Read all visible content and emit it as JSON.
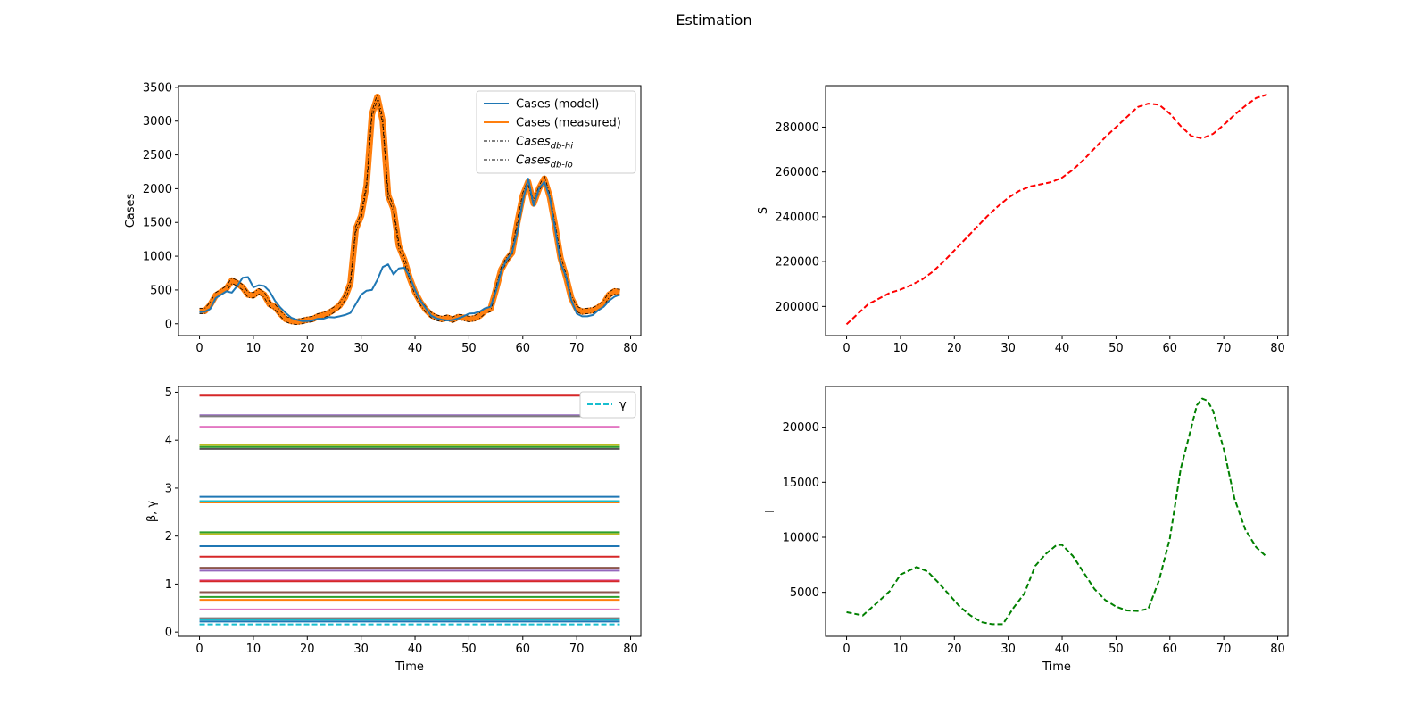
{
  "figure": {
    "title": "Estimation"
  },
  "chart_data": [
    {
      "type": "line",
      "title": "",
      "xlabel": "",
      "ylabel": "Cases",
      "xlim": [
        -3.9,
        81.9
      ],
      "ylim": [
        -175,
        3525
      ],
      "xticks": [
        0,
        10,
        20,
        30,
        40,
        50,
        60,
        70,
        80
      ],
      "yticks": [
        0,
        500,
        1000,
        1500,
        2000,
        2500,
        3000,
        3500
      ],
      "grid": false,
      "legend_position": "top-right",
      "x": [
        0,
        1,
        2,
        3,
        4,
        5,
        6,
        7,
        8,
        9,
        10,
        11,
        12,
        13,
        14,
        15,
        16,
        17,
        18,
        19,
        20,
        21,
        22,
        23,
        24,
        25,
        26,
        27,
        28,
        29,
        30,
        31,
        32,
        33,
        34,
        35,
        36,
        37,
        38,
        39,
        40,
        41,
        42,
        43,
        44,
        45,
        46,
        47,
        48,
        49,
        50,
        51,
        52,
        53,
        54,
        55,
        56,
        57,
        58,
        59,
        60,
        61,
        62,
        63,
        64,
        65,
        66,
        67,
        68,
        69,
        70,
        71,
        72,
        73,
        74,
        75,
        76,
        77,
        78
      ],
      "series": [
        {
          "name": "Cases (model)",
          "color": "#1f77b4",
          "style": "solid",
          "values": [
            170,
            180,
            220,
            380,
            430,
            480,
            460,
            560,
            680,
            690,
            540,
            570,
            560,
            480,
            340,
            240,
            160,
            90,
            60,
            40,
            40,
            50,
            75,
            75,
            100,
            95,
            110,
            130,
            160,
            290,
            430,
            490,
            500,
            650,
            840,
            880,
            730,
            820,
            830,
            700,
            500,
            340,
            230,
            120,
            80,
            60,
            50,
            55,
            80,
            110,
            150,
            155,
            180,
            230,
            250,
            480,
            780,
            950,
            1050,
            1370,
            1820,
            2150,
            1750,
            2000,
            2100,
            1870,
            1400,
            900,
            700,
            350,
            150,
            110,
            110,
            130,
            200,
            250,
            340,
            400,
            430
          ]
        },
        {
          "name": "Cases (measured)",
          "color": "#ff7f0e",
          "style": "solid",
          "values": [
            190,
            190,
            280,
            420,
            470,
            520,
            640,
            600,
            540,
            430,
            420,
            480,
            430,
            290,
            250,
            150,
            70,
            40,
            30,
            40,
            60,
            70,
            110,
            130,
            160,
            210,
            270,
            390,
            600,
            1400,
            1600,
            2050,
            3100,
            3360,
            3000,
            1900,
            1700,
            1150,
            950,
            680,
            470,
            320,
            210,
            130,
            90,
            70,
            90,
            60,
            100,
            90,
            70,
            80,
            120,
            190,
            220,
            500,
            800,
            950,
            1050,
            1500,
            1900,
            2100,
            1780,
            2000,
            2150,
            1880,
            1450,
            980,
            700,
            380,
            220,
            180,
            190,
            200,
            240,
            300,
            430,
            480,
            470
          ]
        },
        {
          "name": "Cases_{db-hi}",
          "color": "#000000",
          "style": "dashdot",
          "offset": 40
        },
        {
          "name": "Cases_{db-lo}",
          "color": "#000000",
          "style": "dashdot",
          "offset": -40
        }
      ]
    },
    {
      "type": "line",
      "title": "",
      "xlabel": "",
      "ylabel": "S",
      "xlim": [
        -3.9,
        81.9
      ],
      "ylim": [
        187000,
        298500
      ],
      "xticks": [
        0,
        10,
        20,
        30,
        40,
        50,
        60,
        70,
        80
      ],
      "yticks": [
        200000,
        220000,
        240000,
        260000,
        280000
      ],
      "grid": false,
      "x": [
        0,
        4,
        8,
        10,
        12,
        14,
        16,
        18,
        20,
        22,
        24,
        26,
        28,
        30,
        32,
        34,
        36,
        38,
        40,
        42,
        44,
        46,
        48,
        50,
        52,
        54,
        56,
        58,
        60,
        62,
        64,
        66,
        68,
        70,
        72,
        74,
        76,
        78
      ],
      "series": [
        {
          "name": "",
          "color": "#ff0000",
          "style": "dashed",
          "values": [
            192000,
            201000,
            206000,
            207500,
            209500,
            212000,
            215500,
            220000,
            225000,
            230000,
            235000,
            240000,
            244500,
            248500,
            251500,
            253500,
            254500,
            255500,
            257500,
            261000,
            265500,
            270500,
            275500,
            280000,
            284500,
            289000,
            290500,
            290000,
            286000,
            280500,
            276000,
            275000,
            277000,
            281000,
            285500,
            289500,
            293000,
            294500
          ]
        }
      ]
    },
    {
      "type": "line",
      "title": "",
      "xlabel": "Time",
      "ylabel": "β, γ",
      "xlim": [
        -3.9,
        81.9
      ],
      "ylim": [
        -0.09,
        5.12
      ],
      "xticks": [
        0,
        10,
        20,
        30,
        40,
        50,
        60,
        70,
        80
      ],
      "yticks": [
        0,
        1,
        2,
        3,
        4,
        5
      ],
      "grid": false,
      "legend_position": "top-right",
      "x_range": [
        0,
        78
      ],
      "constant_lines": [
        {
          "value": 4.93,
          "color": "#d62728"
        },
        {
          "value": 4.52,
          "color": "#9467bd"
        },
        {
          "value": 4.5,
          "color": "#7f7f7f"
        },
        {
          "value": 4.28,
          "color": "#e377c2"
        },
        {
          "value": 3.9,
          "color": "#bcbd22"
        },
        {
          "value": 3.86,
          "color": "#2ca02c"
        },
        {
          "value": 3.82,
          "color": "#555555"
        },
        {
          "value": 2.82,
          "color": "#1f77b4"
        },
        {
          "value": 2.73,
          "color": "#17becf"
        },
        {
          "value": 2.7,
          "color": "#ff7f0e"
        },
        {
          "value": 2.08,
          "color": "#2ca02c"
        },
        {
          "value": 2.04,
          "color": "#bcbd22"
        },
        {
          "value": 1.79,
          "color": "#1f77b4"
        },
        {
          "value": 1.57,
          "color": "#d62728"
        },
        {
          "value": 1.34,
          "color": "#8c564b"
        },
        {
          "value": 1.28,
          "color": "#9467bd"
        },
        {
          "value": 1.08,
          "color": "#e377c2"
        },
        {
          "value": 1.06,
          "color": "#d62728"
        },
        {
          "value": 0.83,
          "color": "#8c564b"
        },
        {
          "value": 0.73,
          "color": "#2ca02c"
        },
        {
          "value": 0.67,
          "color": "#ff7f0e"
        },
        {
          "value": 0.47,
          "color": "#e377c2"
        },
        {
          "value": 0.29,
          "color": "#7f7f7f"
        },
        {
          "value": 0.26,
          "color": "#17becf"
        },
        {
          "value": 0.22,
          "color": "#1f77b4"
        }
      ],
      "series": [
        {
          "name": "γ",
          "color": "#17becf",
          "style": "dashed",
          "value": 0.16
        }
      ]
    },
    {
      "type": "line",
      "title": "",
      "xlabel": "Time",
      "ylabel": "I",
      "xlim": [
        -3.9,
        81.9
      ],
      "ylim": [
        1000,
        23700
      ],
      "xticks": [
        0,
        10,
        20,
        30,
        40,
        50,
        60,
        70,
        80
      ],
      "yticks": [
        5000,
        10000,
        15000,
        20000
      ],
      "grid": false,
      "x": [
        0,
        3,
        6,
        8,
        10,
        13,
        15,
        17,
        19,
        21,
        23,
        25,
        27,
        29,
        31,
        33,
        35,
        37,
        39,
        40,
        42,
        44,
        46,
        48,
        50,
        52,
        54,
        56,
        58,
        60,
        62,
        64,
        65,
        66,
        67,
        68,
        70,
        72,
        74,
        76,
        78
      ],
      "series": [
        {
          "name": "",
          "color": "#008000",
          "style": "dashed",
          "values": [
            3200,
            2900,
            4200,
            5100,
            6600,
            7300,
            6900,
            5900,
            4800,
            3700,
            2900,
            2300,
            2100,
            2100,
            3600,
            4900,
            7400,
            8500,
            9300,
            9300,
            8300,
            6800,
            5300,
            4300,
            3700,
            3350,
            3300,
            3500,
            6100,
            9900,
            16200,
            20000,
            22000,
            22600,
            22400,
            21500,
            18000,
            13500,
            10700,
            9100,
            8200
          ]
        }
      ]
    }
  ]
}
